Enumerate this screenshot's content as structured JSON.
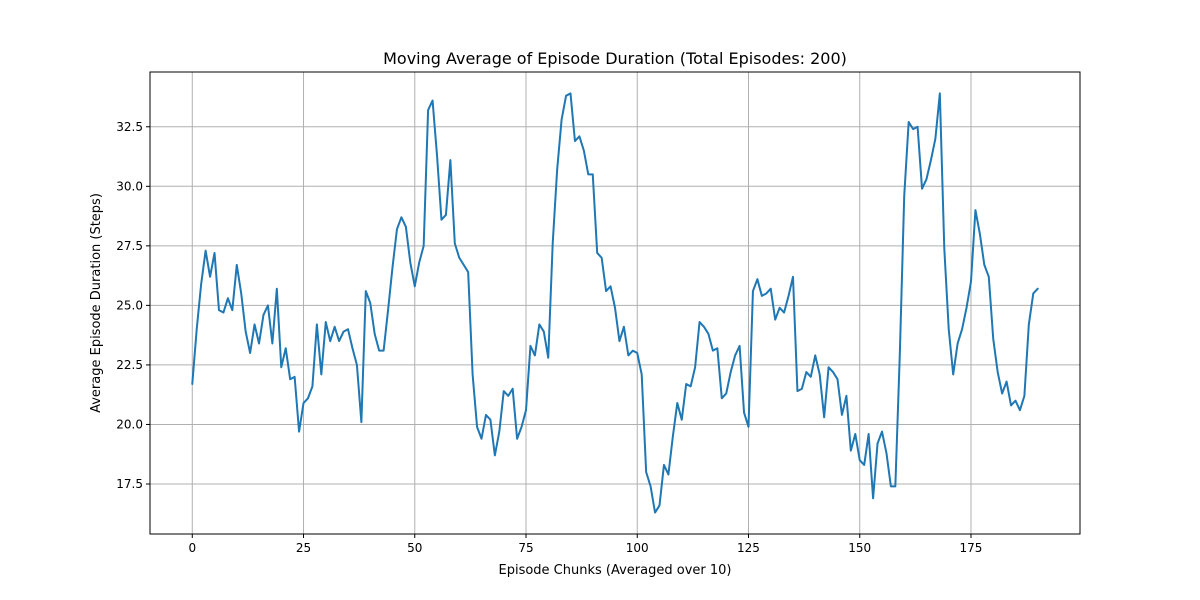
{
  "chart_data": {
    "type": "line",
    "title": "Moving Average of Episode Duration (Total Episodes: 200)",
    "xlabel": "Episode Chunks (Averaged over 10)",
    "ylabel": "Average Episode Duration (Steps)",
    "xlim": [
      -9.5,
      199.5
    ],
    "ylim": [
      15.4,
      34.8
    ],
    "xticks": [
      0,
      25,
      50,
      75,
      100,
      125,
      150,
      175
    ],
    "xtick_labels": [
      "0",
      "25",
      "50",
      "75",
      "100",
      "125",
      "150",
      "175"
    ],
    "yticks": [
      17.5,
      20.0,
      22.5,
      25.0,
      27.5,
      30.0,
      32.5
    ],
    "ytick_labels": [
      "17.5",
      "20.0",
      "22.5",
      "25.0",
      "27.5",
      "30.0",
      "32.5"
    ],
    "grid": true,
    "color": "#1f77b4",
    "series": [
      {
        "x_start": 0,
        "values": [
          21.7,
          24.0,
          25.9,
          27.3,
          26.2,
          27.2,
          24.8,
          24.7,
          25.3,
          24.8,
          26.7,
          25.5,
          23.9,
          23.0,
          24.2,
          23.4,
          24.6,
          25.0,
          23.4,
          25.7,
          22.4,
          23.2,
          21.9,
          22.0,
          19.7,
          20.9,
          21.1,
          21.6,
          24.2,
          22.1,
          24.3,
          23.5,
          24.1,
          23.5,
          23.9,
          24.0,
          23.2,
          22.5,
          20.1,
          25.6,
          25.1,
          23.8,
          23.1,
          23.1,
          24.8,
          26.6,
          28.2,
          28.7,
          28.3,
          26.8,
          25.8,
          26.8,
          27.5,
          33.2,
          33.6,
          31.3,
          28.6,
          28.8,
          31.1,
          27.6,
          27.0,
          26.7,
          26.4,
          22.1,
          19.9,
          19.4,
          20.4,
          20.2,
          18.7,
          19.7,
          21.4,
          21.2,
          21.5,
          19.4,
          19.9,
          20.6,
          23.3,
          22.9,
          24.2,
          23.9,
          22.8,
          27.6,
          30.7,
          32.8,
          33.8,
          33.9,
          31.9,
          32.1,
          31.5,
          30.5,
          30.5,
          27.2,
          27.0,
          25.6,
          25.8,
          24.9,
          23.5,
          24.1,
          22.9,
          23.1,
          23.0,
          22.1,
          18.0,
          17.4,
          16.3,
          16.6,
          18.3,
          17.9,
          19.5,
          20.9,
          20.2,
          21.7,
          21.6,
          22.4,
          24.3,
          24.1,
          23.8,
          23.1,
          23.2,
          21.1,
          21.3,
          22.2,
          22.9,
          23.3,
          20.5,
          19.9,
          25.6,
          26.1,
          25.4,
          25.5,
          25.7,
          24.4,
          24.9,
          24.7,
          25.4,
          26.2,
          21.4,
          21.5,
          22.2,
          22.0,
          22.9,
          22.1,
          20.3,
          22.4,
          22.2,
          21.9,
          20.4,
          21.2,
          18.9,
          19.6,
          18.5,
          18.3,
          19.6,
          16.9,
          19.2,
          19.7,
          18.8,
          17.4,
          17.4,
          22.9,
          29.6,
          32.7,
          32.4,
          32.5,
          29.9,
          30.3,
          31.1,
          32.0,
          33.9,
          27.4,
          24.0,
          22.1,
          23.4,
          24.0,
          24.9,
          26.0,
          29.0,
          28.0,
          26.7,
          26.2,
          23.6,
          22.2,
          21.3,
          21.8,
          20.8,
          21.0,
          20.6,
          21.2,
          24.2,
          25.5,
          25.7
        ]
      }
    ]
  }
}
